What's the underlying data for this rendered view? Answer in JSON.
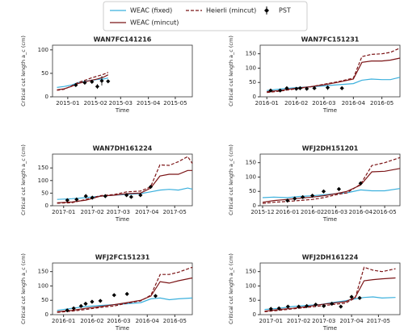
{
  "chart_data": [
    {
      "type": "line",
      "title": "WAN7FC141216",
      "xlabel": "Time",
      "ylabel": "Critical cut length a_c (cm)",
      "xlim": [
        "2014-12-15",
        "2015-05-20"
      ],
      "xticks": [
        {
          "value": "2015-01-01",
          "label": "2015-01"
        },
        {
          "value": "2015-02-01",
          "label": "2015-02"
        },
        {
          "value": "2015-03-01",
          "label": "2015-03"
        },
        {
          "value": "2015-04-01",
          "label": "2015-04"
        },
        {
          "value": "2015-05-01",
          "label": "2015-05"
        }
      ],
      "ylim": [
        0,
        110
      ],
      "yticks": [
        0,
        50,
        100
      ],
      "x": [
        "2014-12-20",
        "2014-12-28",
        "2015-01-05",
        "2015-01-12",
        "2015-01-20",
        "2015-01-27",
        "2015-02-03",
        "2015-02-10",
        "2015-02-15"
      ],
      "series": [
        {
          "name": "WEAC (fixed)",
          "color": "#3bb0dd",
          "values": [
            20,
            22,
            25,
            30,
            33,
            35,
            37,
            38,
            40
          ]
        },
        {
          "name": "WEAC (mincut)",
          "color": "#7b1416",
          "values": [
            15,
            17,
            22,
            28,
            32,
            35,
            38,
            42,
            47
          ]
        },
        {
          "name": "Heierli (mincut)",
          "color": "#7b1416",
          "dash": true,
          "values": [
            14,
            16,
            23,
            30,
            35,
            40,
            44,
            48,
            52
          ]
        },
        {
          "name": "PST",
          "color": "#000000",
          "marker": "diamond",
          "x": [
            "2015-01-10",
            "2015-01-20",
            "2015-01-28",
            "2015-02-03",
            "2015-02-08",
            "2015-02-15"
          ],
          "values": [
            25,
            30,
            32,
            22,
            34,
            33
          ],
          "errors": [
            null,
            null,
            null,
            5,
            10,
            null
          ]
        }
      ]
    },
    {
      "type": "line",
      "title": "WAN7FC151231",
      "xlabel": "Time",
      "ylabel": "Critical cut length a_c (cm)",
      "xlim": [
        "2015-12-25",
        "2016-05-20"
      ],
      "xticks": [
        {
          "value": "2016-01-01",
          "label": "2016-01"
        },
        {
          "value": "2016-02-01",
          "label": "2016-02"
        },
        {
          "value": "2016-03-01",
          "label": "2016-03"
        },
        {
          "value": "2016-04-01",
          "label": "2016-04"
        },
        {
          "value": "2016-05-01",
          "label": "2016-05"
        }
      ],
      "ylim": [
        0,
        180
      ],
      "yticks": [
        0,
        50,
        100,
        150
      ],
      "x": [
        "2016-01-01",
        "2016-01-15",
        "2016-02-01",
        "2016-02-15",
        "2016-03-01",
        "2016-03-15",
        "2016-04-01",
        "2016-04-10",
        "2016-04-20",
        "2016-05-01",
        "2016-05-10",
        "2016-05-20"
      ],
      "series": [
        {
          "name": "WEAC (fixed)",
          "color": "#3bb0dd",
          "values": [
            22,
            27,
            32,
            35,
            38,
            42,
            46,
            58,
            62,
            60,
            60,
            68
          ]
        },
        {
          "name": "WEAC (mincut)",
          "color": "#7b1416",
          "values": [
            18,
            22,
            30,
            35,
            42,
            50,
            62,
            120,
            125,
            125,
            128,
            135
          ]
        },
        {
          "name": "Heierli (mincut)",
          "color": "#7b1416",
          "dash": true,
          "values": [
            15,
            20,
            28,
            34,
            44,
            52,
            65,
            140,
            148,
            150,
            155,
            170
          ]
        },
        {
          "name": "PST",
          "color": "#000000",
          "marker": "diamond",
          "x": [
            "2016-01-05",
            "2016-01-15",
            "2016-01-22",
            "2016-02-01",
            "2016-02-05",
            "2016-02-12",
            "2016-02-20",
            "2016-03-05",
            "2016-03-20"
          ],
          "values": [
            22,
            22,
            30,
            28,
            30,
            28,
            30,
            32,
            30
          ],
          "errors": [
            null,
            null,
            null,
            null,
            null,
            5,
            null,
            8,
            6
          ]
        }
      ]
    },
    {
      "type": "line",
      "title": "WAN7DH161224",
      "xlabel": "Time",
      "ylabel": "Critical cut length a_c (cm)",
      "xlim": [
        "2016-12-20",
        "2017-05-20"
      ],
      "xticks": [
        {
          "value": "2017-01-01",
          "label": "2017-01"
        },
        {
          "value": "2017-02-01",
          "label": "2017-02"
        },
        {
          "value": "2017-03-01",
          "label": "2017-03"
        },
        {
          "value": "2017-04-01",
          "label": "2017-04"
        },
        {
          "value": "2017-05-01",
          "label": "2017-05"
        }
      ],
      "ylim": [
        0,
        205
      ],
      "yticks": [
        0,
        50,
        100,
        150
      ],
      "x": [
        "2016-12-25",
        "2017-01-10",
        "2017-01-25",
        "2017-02-10",
        "2017-02-25",
        "2017-03-10",
        "2017-03-25",
        "2017-04-05",
        "2017-04-15",
        "2017-04-25",
        "2017-05-05",
        "2017-05-15",
        "2017-05-20"
      ],
      "series": [
        {
          "name": "WEAC (fixed)",
          "color": "#3bb0dd",
          "values": [
            25,
            28,
            32,
            38,
            42,
            45,
            48,
            55,
            62,
            65,
            62,
            70,
            66
          ]
        },
        {
          "name": "WEAC (mincut)",
          "color": "#7b1416",
          "values": [
            12,
            15,
            22,
            38,
            42,
            48,
            50,
            70,
            118,
            125,
            125,
            140,
            140
          ]
        },
        {
          "name": "Heierli (mincut)",
          "color": "#7b1416",
          "dash": true,
          "values": [
            10,
            12,
            25,
            40,
            45,
            55,
            58,
            75,
            162,
            160,
            175,
            195,
            168
          ]
        },
        {
          "name": "PST",
          "color": "#000000",
          "marker": "diamond",
          "x": [
            "2017-01-05",
            "2017-01-15",
            "2017-01-25",
            "2017-02-01",
            "2017-02-15",
            "2017-03-10",
            "2017-03-15",
            "2017-03-25",
            "2017-04-05"
          ],
          "values": [
            22,
            25,
            38,
            32,
            38,
            42,
            35,
            42,
            75
          ],
          "errors": [
            null,
            null,
            8,
            null,
            null,
            null,
            null,
            null,
            5
          ]
        }
      ]
    },
    {
      "type": "line",
      "title": "WFJ2DH151201",
      "xlabel": "Time",
      "ylabel": "Critical cut length a_c (cm)",
      "xlim": [
        "2015-11-28",
        "2016-05-20"
      ],
      "xticks": [
        {
          "value": "2015-12-01",
          "label": "2015-12"
        },
        {
          "value": "2016-01-01",
          "label": "2016-01"
        },
        {
          "value": "2016-02-01",
          "label": "2016-02"
        },
        {
          "value": "2016-03-01",
          "label": "2016-03"
        },
        {
          "value": "2016-04-01",
          "label": "2016-04"
        },
        {
          "value": "2016-05-01",
          "label": "2016-05"
        }
      ],
      "ylim": [
        0,
        180
      ],
      "yticks": [
        0,
        50,
        100,
        150
      ],
      "x": [
        "2015-12-01",
        "2015-12-15",
        "2016-01-01",
        "2016-01-15",
        "2016-02-01",
        "2016-02-15",
        "2016-03-01",
        "2016-03-15",
        "2016-04-01",
        "2016-04-15",
        "2016-05-01",
        "2016-05-20"
      ],
      "series": [
        {
          "name": "WEAC (fixed)",
          "color": "#3bb0dd",
          "values": [
            28,
            30,
            28,
            32,
            35,
            38,
            42,
            45,
            55,
            52,
            52,
            60
          ]
        },
        {
          "name": "WEAC (mincut)",
          "color": "#7b1416",
          "values": [
            12,
            18,
            22,
            26,
            30,
            35,
            42,
            50,
            72,
            118,
            120,
            130
          ]
        },
        {
          "name": "Heierli (mincut)",
          "color": "#7b1416",
          "dash": true,
          "values": [
            8,
            12,
            15,
            18,
            22,
            28,
            38,
            45,
            75,
            140,
            150,
            168
          ]
        },
        {
          "name": "PST",
          "color": "#000000",
          "marker": "diamond",
          "x": [
            "2016-01-01",
            "2016-01-10",
            "2016-01-20",
            "2016-02-01",
            "2016-02-15",
            "2016-03-05",
            "2016-04-01"
          ],
          "values": [
            18,
            25,
            30,
            35,
            50,
            58,
            78
          ],
          "errors": [
            null,
            null,
            null,
            null,
            null,
            null,
            5
          ]
        }
      ]
    },
    {
      "type": "line",
      "title": "WFJ2FC151231",
      "xlabel": "Time",
      "ylabel": "Critical cut length a_c (cm)",
      "xlim": [
        "2015-12-20",
        "2016-05-20"
      ],
      "xticks": [
        {
          "value": "2016-01-01",
          "label": "2016-01"
        },
        {
          "value": "2016-02-01",
          "label": "2016-02"
        },
        {
          "value": "2016-03-01",
          "label": "2016-03"
        },
        {
          "value": "2016-04-01",
          "label": "2016-04"
        },
        {
          "value": "2016-05-01",
          "label": "2016-05"
        }
      ],
      "ylim": [
        0,
        180
      ],
      "yticks": [
        0,
        50,
        100,
        150
      ],
      "x": [
        "2015-12-25",
        "2016-01-10",
        "2016-01-25",
        "2016-02-10",
        "2016-02-25",
        "2016-03-10",
        "2016-03-25",
        "2016-04-05",
        "2016-04-15",
        "2016-04-25",
        "2016-05-05",
        "2016-05-20"
      ],
      "series": [
        {
          "name": "WEAC (fixed)",
          "color": "#3bb0dd",
          "values": [
            15,
            22,
            28,
            32,
            35,
            38,
            42,
            55,
            58,
            52,
            55,
            58
          ]
        },
        {
          "name": "WEAC (mincut)",
          "color": "#7b1416",
          "values": [
            10,
            15,
            22,
            28,
            35,
            42,
            50,
            65,
            115,
            110,
            118,
            128
          ]
        },
        {
          "name": "Heierli (mincut)",
          "color": "#7b1416",
          "dash": true,
          "values": [
            8,
            12,
            18,
            25,
            30,
            40,
            48,
            68,
            140,
            140,
            148,
            165
          ]
        },
        {
          "name": "PST",
          "color": "#000000",
          "marker": "diamond",
          "x": [
            "2016-01-05",
            "2016-01-12",
            "2016-01-20",
            "2016-01-25",
            "2016-02-01",
            "2016-02-10",
            "2016-02-25",
            "2016-03-10",
            "2016-04-10"
          ],
          "values": [
            15,
            22,
            30,
            38,
            45,
            48,
            68,
            72,
            65
          ],
          "errors": [
            null,
            null,
            null,
            null,
            null,
            null,
            null,
            null,
            null
          ]
        }
      ]
    },
    {
      "type": "line",
      "title": "WFJ2DH161224",
      "xlabel": "Time",
      "ylabel": "Critical cut length a_c (cm)",
      "xlim": [
        "2016-12-20",
        "2017-05-25"
      ],
      "xticks": [
        {
          "value": "2017-01-01",
          "label": "2017-01"
        },
        {
          "value": "2017-02-01",
          "label": "2017-02"
        },
        {
          "value": "2017-03-01",
          "label": "2017-03"
        },
        {
          "value": "2017-04-01",
          "label": "2017-04"
        },
        {
          "value": "2017-05-01",
          "label": "2017-05"
        }
      ],
      "ylim": [
        0,
        180
      ],
      "yticks": [
        0,
        50,
        100,
        150
      ],
      "x": [
        "2016-12-25",
        "2017-01-10",
        "2017-01-25",
        "2017-02-10",
        "2017-02-25",
        "2017-03-10",
        "2017-03-25",
        "2017-04-05",
        "2017-04-15",
        "2017-04-25",
        "2017-05-05",
        "2017-05-20"
      ],
      "series": [
        {
          "name": "WEAC (fixed)",
          "color": "#3bb0dd",
          "values": [
            18,
            22,
            28,
            32,
            35,
            42,
            48,
            55,
            60,
            62,
            58,
            60
          ]
        },
        {
          "name": "WEAC (mincut)",
          "color": "#7b1416",
          "values": [
            12,
            18,
            22,
            28,
            35,
            40,
            45,
            60,
            118,
            122,
            125,
            128
          ]
        },
        {
          "name": "Heierli (mincut)",
          "color": "#7b1416",
          "dash": true,
          "values": [
            10,
            15,
            20,
            25,
            30,
            35,
            40,
            58,
            165,
            155,
            150,
            160
          ]
        },
        {
          "name": "PST",
          "color": "#000000",
          "marker": "diamond",
          "x": [
            "2017-01-01",
            "2017-01-10",
            "2017-01-20",
            "2017-02-01",
            "2017-02-10",
            "2017-02-20",
            "2017-03-01",
            "2017-03-10",
            "2017-03-20",
            "2017-04-01",
            "2017-04-10"
          ],
          "values": [
            20,
            22,
            28,
            28,
            30,
            35,
            30,
            38,
            28,
            62,
            58
          ],
          "errors": [
            null,
            null,
            null,
            null,
            null,
            null,
            null,
            5,
            null,
            null,
            null
          ]
        }
      ]
    }
  ]
}
